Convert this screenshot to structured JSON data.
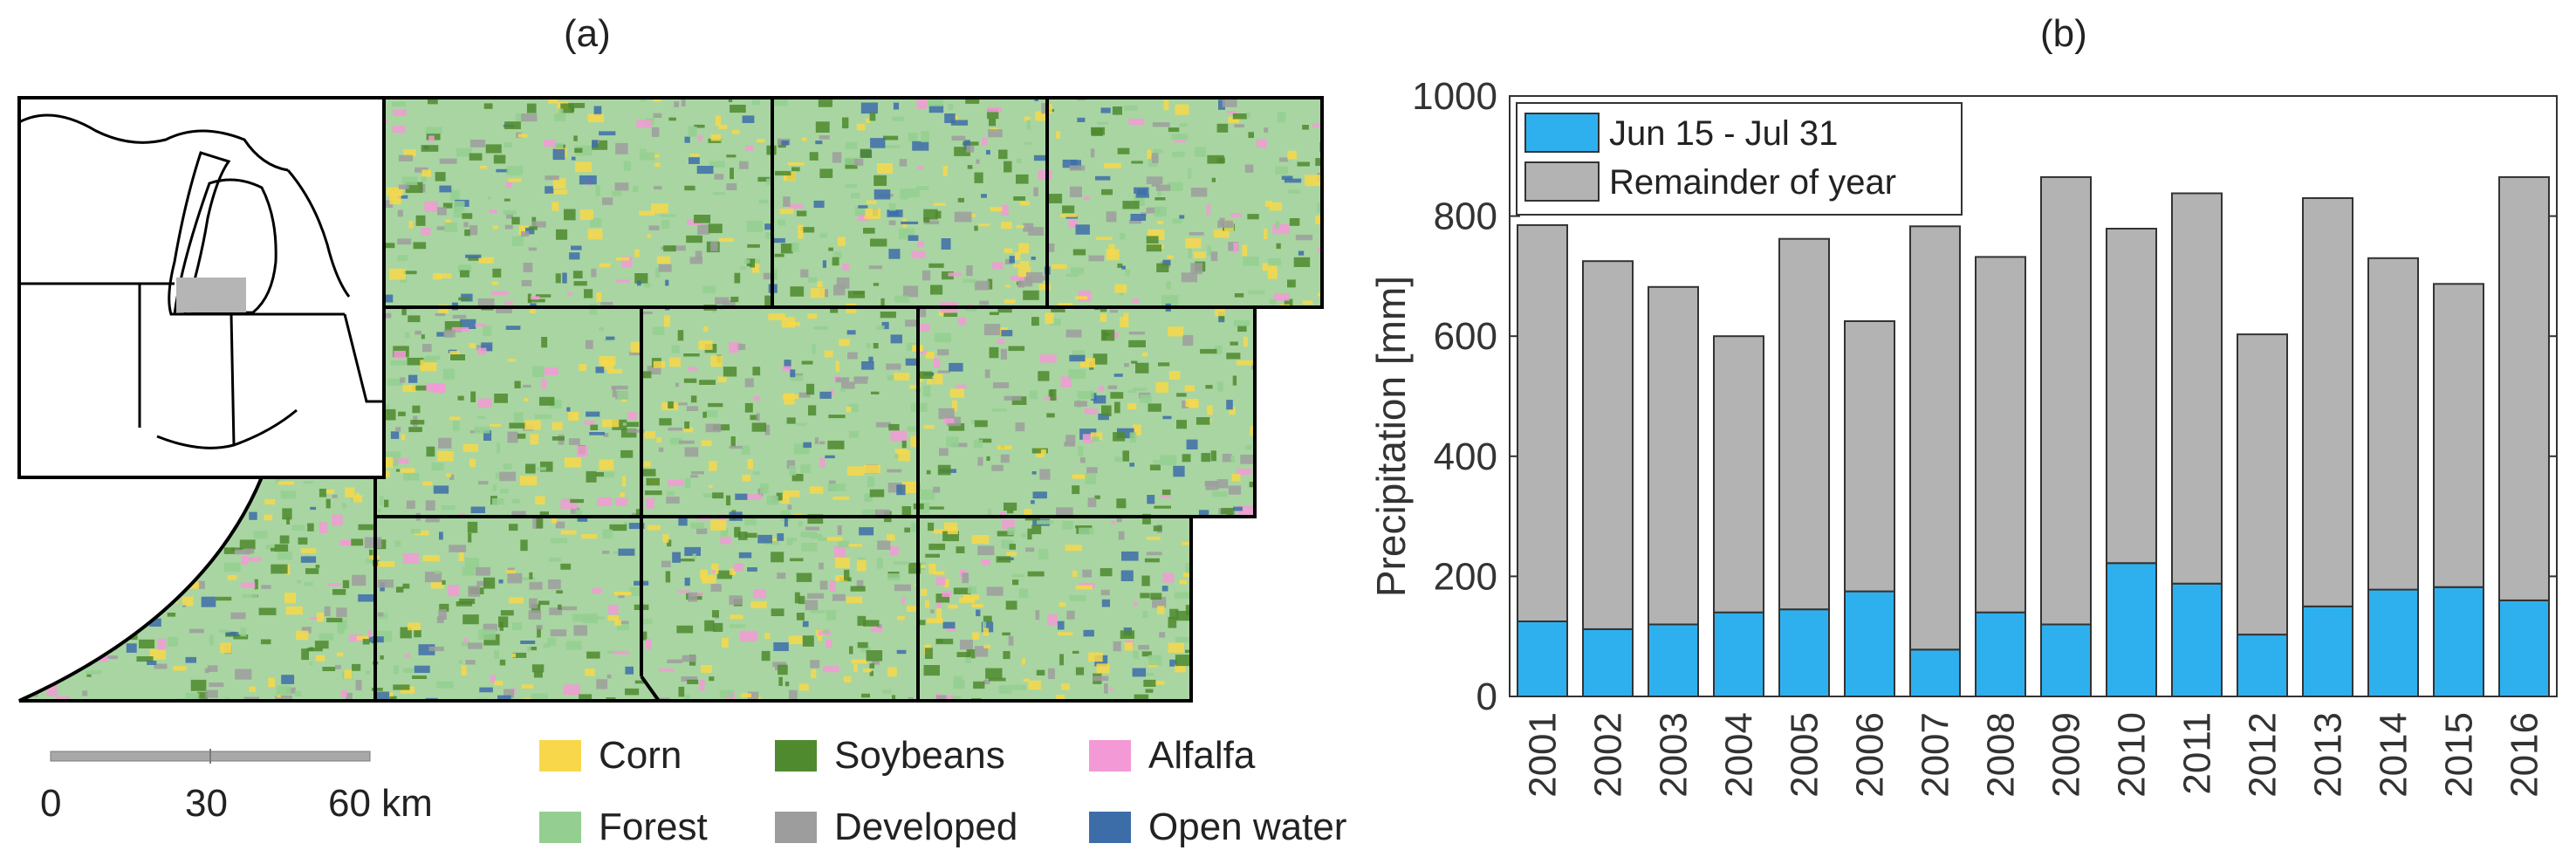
{
  "panels": {
    "a_label": "(a)",
    "b_label": "(b)"
  },
  "map": {
    "scale_bar": {
      "ticks": [
        "0",
        "30",
        "60 km"
      ]
    },
    "legend": [
      {
        "label": "Corn",
        "color": "#f8d84a"
      },
      {
        "label": "Soybeans",
        "color": "#4f8a2e"
      },
      {
        "label": "Alfalfa",
        "color": "#f39ad6"
      },
      {
        "label": "Forest",
        "color": "#94cf91"
      },
      {
        "label": "Developed",
        "color": "#9d9d9d"
      },
      {
        "label": "Open water",
        "color": "#3d6da9"
      }
    ],
    "colors": {
      "background": "#a9d5a2",
      "inset_region": "#b5b5b5",
      "outline": "#000000"
    }
  },
  "chart_data": {
    "type": "bar",
    "stacked": true,
    "categories": [
      "2001",
      "2002",
      "2003",
      "2004",
      "2005",
      "2006",
      "2007",
      "2008",
      "2009",
      "2010",
      "2011",
      "2012",
      "2013",
      "2014",
      "2015",
      "2016"
    ],
    "series": [
      {
        "name": "Jun 15 - Jul 31",
        "color": "#2fb0ee",
        "values": [
          125,
          112,
          120,
          140,
          145,
          175,
          78,
          140,
          120,
          222,
          188,
          103,
          150,
          178,
          182,
          160
        ]
      },
      {
        "name": "Remainder of year",
        "color": "#b3b3b3",
        "values": [
          660,
          613,
          562,
          460,
          617,
          450,
          705,
          592,
          745,
          557,
          650,
          500,
          680,
          552,
          505,
          705
        ]
      }
    ],
    "ylabel": "Precipitation [mm]",
    "ylim": [
      0,
      1000
    ],
    "yticks": [
      "0",
      "200",
      "400",
      "600",
      "800",
      "1000"
    ],
    "legend_position": "top-left",
    "grid": false
  }
}
